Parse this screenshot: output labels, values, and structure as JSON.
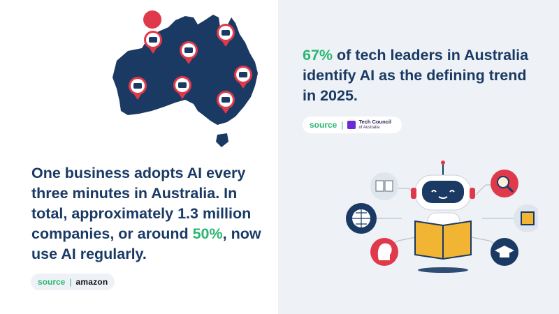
{
  "left": {
    "stat_prefix": "One business adopts AI every three minutes in Australia. In total, approximately 1.3 million companies, or around ",
    "stat_highlight": "50%",
    "stat_suffix": ", now use AI regularly.",
    "source_label": "source",
    "source_separator": "|",
    "source_brand": "amazon"
  },
  "right": {
    "stat_highlight": "67%",
    "stat_text": " of tech leaders in Australia identify AI as the defining trend in 2025.",
    "source_label": "source",
    "source_separator": "|",
    "source_brand_line1": "Tech Council",
    "source_brand_line2": "of Australia"
  },
  "colors": {
    "navy": "#1a3a64",
    "green": "#2bb673",
    "red": "#e0394b",
    "panel": "#eef2f6"
  },
  "icons": [
    "map-pin-robot-icon",
    "book-icon",
    "magnifier-icon",
    "globe-icon",
    "chip-icon",
    "head-icon",
    "graduation-cap-icon",
    "robot-icon"
  ]
}
